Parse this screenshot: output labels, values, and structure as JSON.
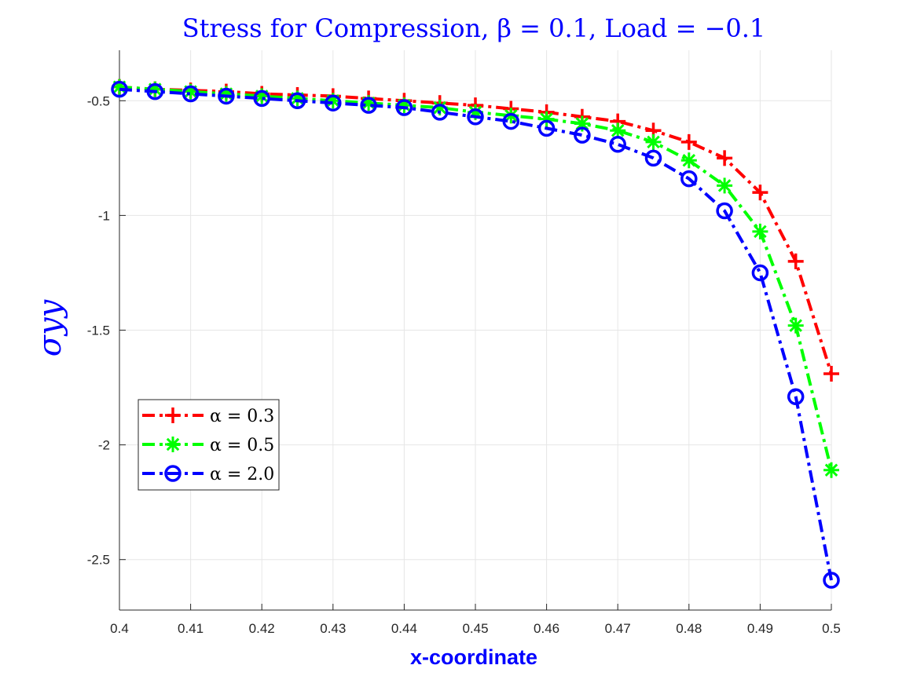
{
  "chart_data": {
    "type": "line",
    "title": "Stress for Compression, β = 0.1, Load = −0.1",
    "xlabel": "x-coordinate",
    "ylabel": "σyy",
    "xlim": [
      0.4,
      0.5
    ],
    "ylim": [
      -2.72,
      -0.28
    ],
    "xticks": [
      0.4,
      0.41,
      0.42,
      0.43,
      0.44,
      0.45,
      0.46,
      0.47,
      0.48,
      0.49,
      0.5
    ],
    "xtick_labels": [
      "0.4",
      "0.41",
      "0.42",
      "0.43",
      "0.44",
      "0.45",
      "0.46",
      "0.47",
      "0.48",
      "0.49",
      "0.5"
    ],
    "yticks": [
      -0.5,
      -1,
      -1.5,
      -2,
      -2.5
    ],
    "ytick_labels": [
      "-0.5",
      "-1",
      "-1.5",
      "-2",
      "-2.5"
    ],
    "grid": true,
    "legend_position": "lower-left",
    "x": [
      0.4,
      0.405,
      0.41,
      0.415,
      0.42,
      0.425,
      0.43,
      0.435,
      0.44,
      0.445,
      0.45,
      0.455,
      0.46,
      0.465,
      0.47,
      0.475,
      0.48,
      0.485,
      0.49,
      0.495,
      0.5
    ],
    "series": [
      {
        "name": "α = 0.3",
        "color": "#ff0000",
        "marker": "plus",
        "values": [
          -0.44,
          -0.45,
          -0.455,
          -0.46,
          -0.47,
          -0.475,
          -0.48,
          -0.49,
          -0.5,
          -0.51,
          -0.52,
          -0.535,
          -0.55,
          -0.57,
          -0.59,
          -0.63,
          -0.68,
          -0.75,
          -0.9,
          -1.2,
          -1.69
        ]
      },
      {
        "name": "α = 0.5",
        "color": "#00ff00",
        "marker": "asterisk",
        "values": [
          -0.44,
          -0.45,
          -0.46,
          -0.47,
          -0.48,
          -0.49,
          -0.5,
          -0.51,
          -0.52,
          -0.53,
          -0.55,
          -0.565,
          -0.58,
          -0.6,
          -0.63,
          -0.68,
          -0.76,
          -0.87,
          -1.07,
          -1.48,
          -2.11
        ]
      },
      {
        "name": "α = 2.0",
        "color": "#0000ff",
        "marker": "circle",
        "values": [
          -0.45,
          -0.46,
          -0.47,
          -0.48,
          -0.49,
          -0.5,
          -0.51,
          -0.52,
          -0.53,
          -0.55,
          -0.57,
          -0.59,
          -0.62,
          -0.65,
          -0.69,
          -0.75,
          -0.84,
          -0.98,
          -1.25,
          -1.79,
          -2.59
        ]
      }
    ]
  }
}
